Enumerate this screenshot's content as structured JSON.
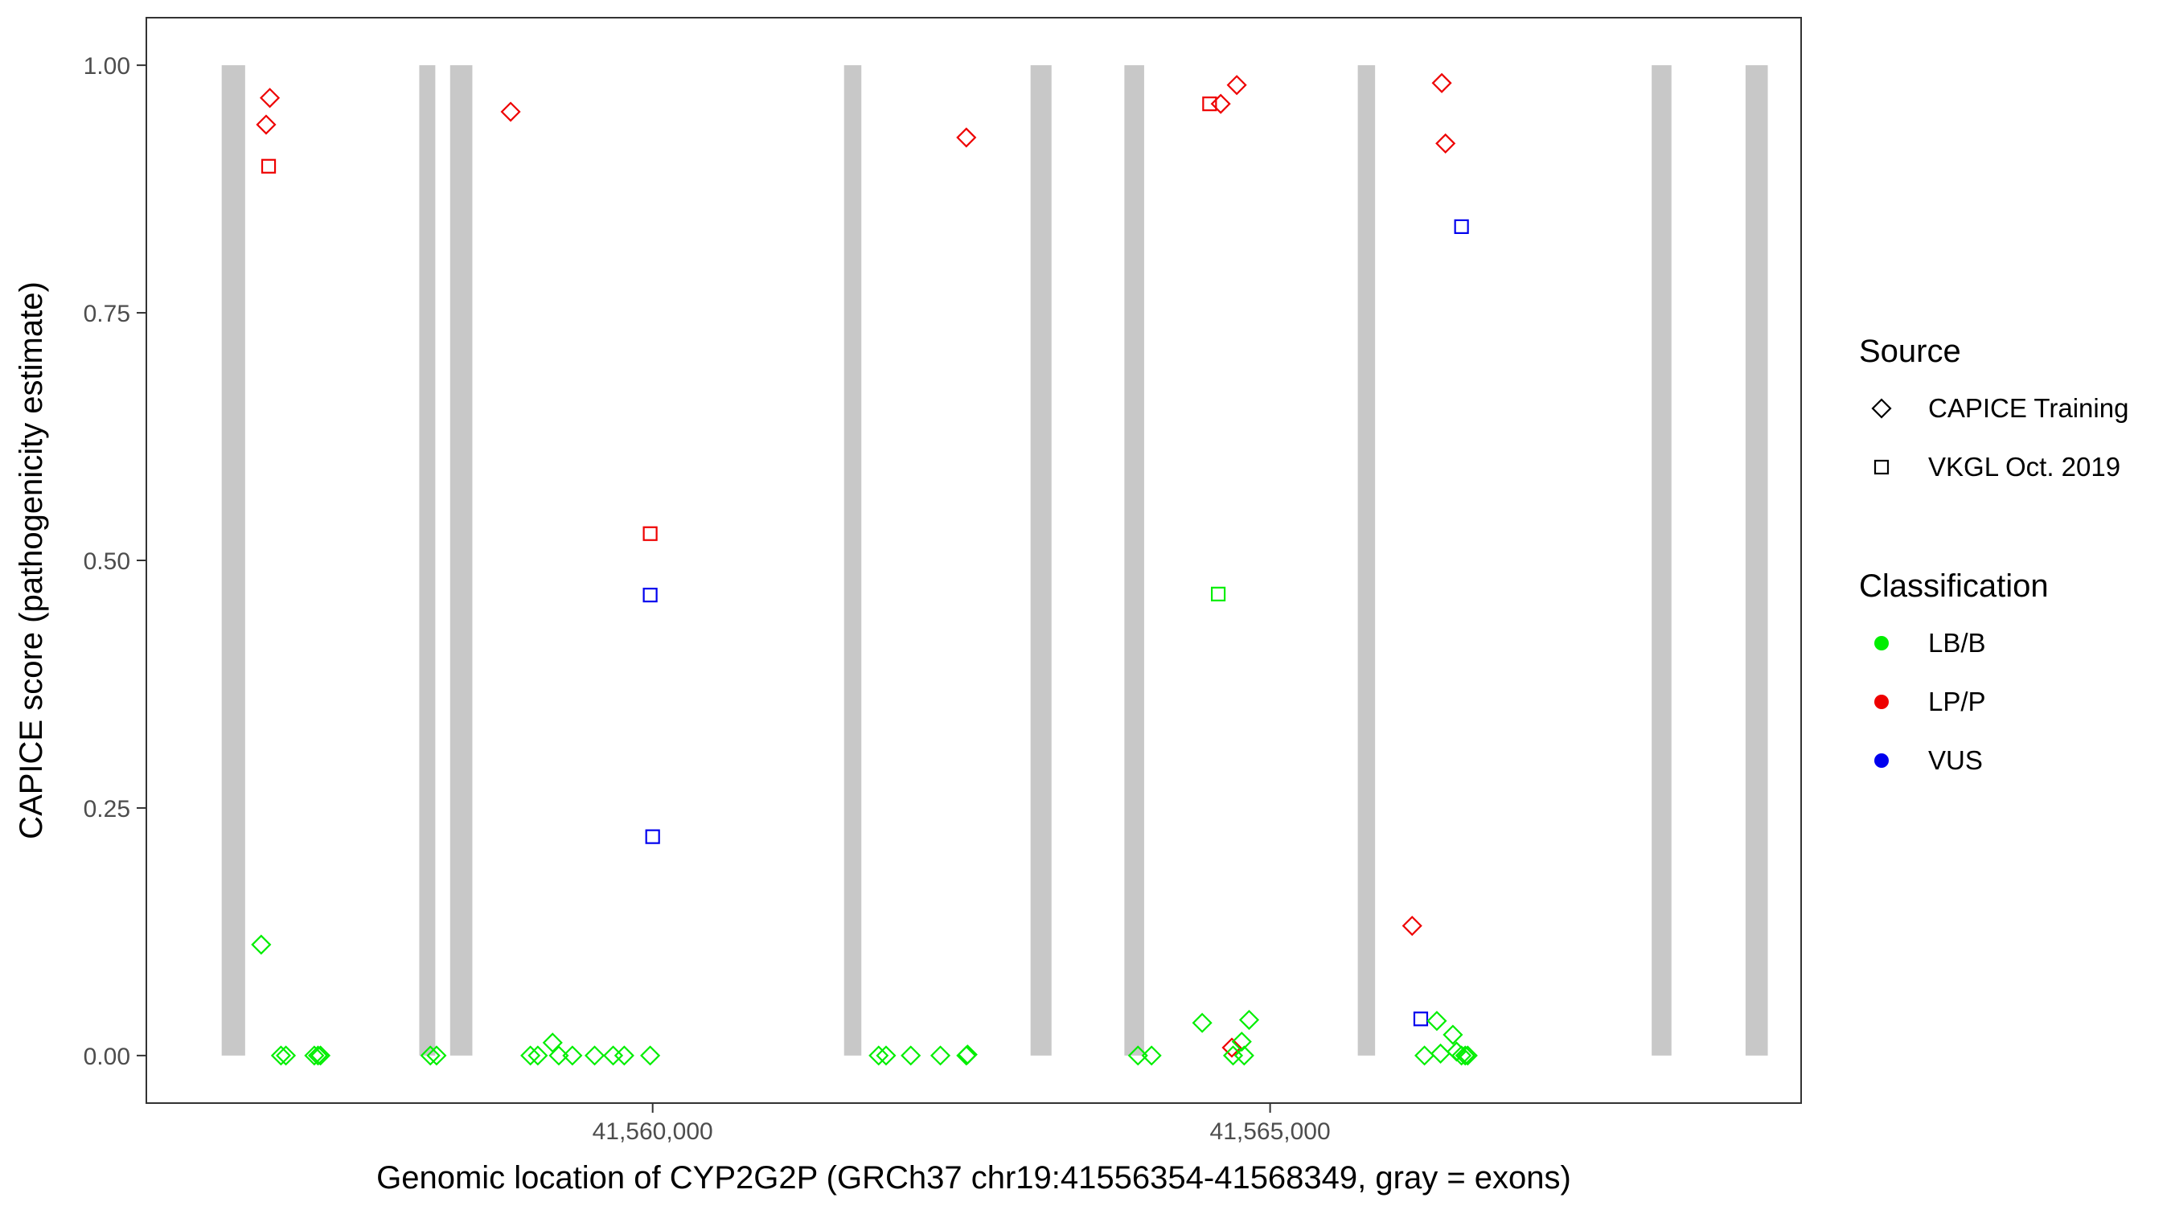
{
  "chart_data": {
    "type": "scatter",
    "title": "",
    "xlabel": "Genomic location of CYP2G2P (GRCh37 chr19:41556354-41568349, gray = exons)",
    "ylabel": "CAPICE score (pathogenicity estimate)",
    "xlim": [
      41555900,
      41569300
    ],
    "ylim": [
      -0.048,
      1.048
    ],
    "x_ticks": [
      {
        "value": 41560000,
        "label": "41,560,000"
      },
      {
        "value": 41565000,
        "label": "41,565,000"
      }
    ],
    "y_ticks": [
      {
        "value": 0.0,
        "label": "0.00"
      },
      {
        "value": 0.25,
        "label": "0.25"
      },
      {
        "value": 0.5,
        "label": "0.50"
      },
      {
        "value": 0.75,
        "label": "0.75"
      },
      {
        "value": 1.0,
        "label": "1.00"
      }
    ],
    "grid": false,
    "exon_color": "#c8c8c8",
    "exons": [
      [
        41556510,
        41556700
      ],
      [
        41558110,
        41558240
      ],
      [
        41558360,
        41558540
      ],
      [
        41561550,
        41561690
      ],
      [
        41563060,
        41563230
      ],
      [
        41563820,
        41563980
      ],
      [
        41565710,
        41565850
      ],
      [
        41568090,
        41568250
      ],
      [
        41568850,
        41569030
      ]
    ],
    "legend": {
      "position": "right",
      "source_title": "Source",
      "source_entries": [
        {
          "label": "CAPICE Training",
          "shape": "diamond"
        },
        {
          "label": "VKGL Oct. 2019",
          "shape": "square"
        }
      ],
      "class_title": "Classification",
      "class_entries": [
        {
          "label": "LB/B",
          "color": "#00ee00"
        },
        {
          "label": "LP/P",
          "color": "#ee0000"
        },
        {
          "label": "VUS",
          "color": "#0000ee"
        }
      ]
    },
    "series": [
      {
        "name": "CAPICE Training",
        "shape": "diamond",
        "classification": "LP/P",
        "color": "#ee0000",
        "points": [
          [
            41556900,
            0.967
          ],
          [
            41556870,
            0.94
          ],
          [
            41558850,
            0.953
          ],
          [
            41562540,
            0.927
          ],
          [
            41564600,
            0.961
          ],
          [
            41564730,
            0.98
          ],
          [
            41566390,
            0.982
          ],
          [
            41566420,
            0.921
          ],
          [
            41566150,
            0.131
          ],
          [
            41564690,
            0.008
          ]
        ]
      },
      {
        "name": "VKGL Oct. 2019",
        "shape": "square",
        "classification": "LP/P",
        "color": "#ee0000",
        "points": [
          [
            41556890,
            0.898
          ],
          [
            41559980,
            0.527
          ],
          [
            41564510,
            0.961
          ]
        ]
      },
      {
        "name": "VKGL Oct. 2019",
        "shape": "square",
        "classification": "VUS",
        "color": "#0000ee",
        "points": [
          [
            41559980,
            0.465
          ],
          [
            41560000,
            0.221
          ],
          [
            41566550,
            0.837
          ],
          [
            41566220,
            0.037
          ]
        ]
      },
      {
        "name": "VKGL Oct. 2019",
        "shape": "square",
        "classification": "LB/B",
        "color": "#00ee00",
        "points": [
          [
            41564580,
            0.466
          ]
        ]
      },
      {
        "name": "CAPICE Training",
        "shape": "diamond",
        "classification": "LB/B",
        "color": "#00ee00",
        "points": [
          [
            41556830,
            0.112
          ],
          [
            41556990,
            0
          ],
          [
            41557030,
            0
          ],
          [
            41557260,
            0
          ],
          [
            41557290,
            0
          ],
          [
            41557310,
            0
          ],
          [
            41558200,
            0
          ],
          [
            41558250,
            0
          ],
          [
            41559010,
            0
          ],
          [
            41559070,
            0
          ],
          [
            41559190,
            0.013
          ],
          [
            41559240,
            0
          ],
          [
            41559350,
            0
          ],
          [
            41559530,
            0
          ],
          [
            41559680,
            0
          ],
          [
            41559770,
            0
          ],
          [
            41559980,
            0
          ],
          [
            41561830,
            0
          ],
          [
            41561890,
            0
          ],
          [
            41562090,
            0
          ],
          [
            41562330,
            0
          ],
          [
            41562540,
            0
          ],
          [
            41562550,
            0.001
          ],
          [
            41563930,
            0
          ],
          [
            41564040,
            0
          ],
          [
            41564450,
            0.033
          ],
          [
            41564700,
            0
          ],
          [
            41564770,
            0.014
          ],
          [
            41564830,
            0.036
          ],
          [
            41564790,
            0
          ],
          [
            41566250,
            0
          ],
          [
            41566350,
            0.035
          ],
          [
            41566380,
            0.002
          ],
          [
            41566480,
            0.021
          ],
          [
            41566510,
            0.004
          ],
          [
            41566550,
            0
          ],
          [
            41566580,
            0
          ],
          [
            41566600,
            0
          ]
        ]
      }
    ]
  }
}
